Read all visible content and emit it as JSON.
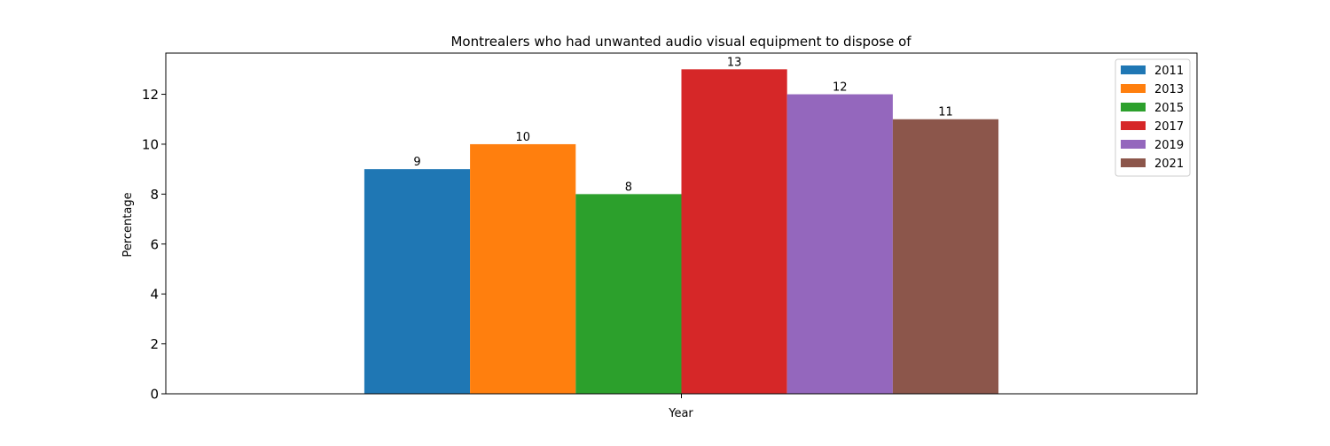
{
  "chart_data": {
    "type": "bar",
    "title": "Montrealers who had unwanted audio visual equipment to dispose of",
    "xlabel": "Year",
    "ylabel": "Percentage",
    "categories": [
      ""
    ],
    "ylim": [
      0,
      13.65
    ],
    "yticks": [
      0,
      2,
      4,
      6,
      8,
      10,
      12
    ],
    "grid": false,
    "legend_position": "top-right",
    "series": [
      {
        "name": "2011",
        "values": [
          9
        ],
        "color": "#1f77b4"
      },
      {
        "name": "2013",
        "values": [
          10
        ],
        "color": "#ff7f0e"
      },
      {
        "name": "2015",
        "values": [
          8
        ],
        "color": "#2ca02c"
      },
      {
        "name": "2017",
        "values": [
          13
        ],
        "color": "#d62728"
      },
      {
        "name": "2019",
        "values": [
          12
        ],
        "color": "#9467bd"
      },
      {
        "name": "2021",
        "values": [
          11
        ],
        "color": "#8c564b"
      }
    ],
    "data_labels": [
      "9",
      "10",
      "8",
      "13",
      "12",
      "11"
    ]
  }
}
